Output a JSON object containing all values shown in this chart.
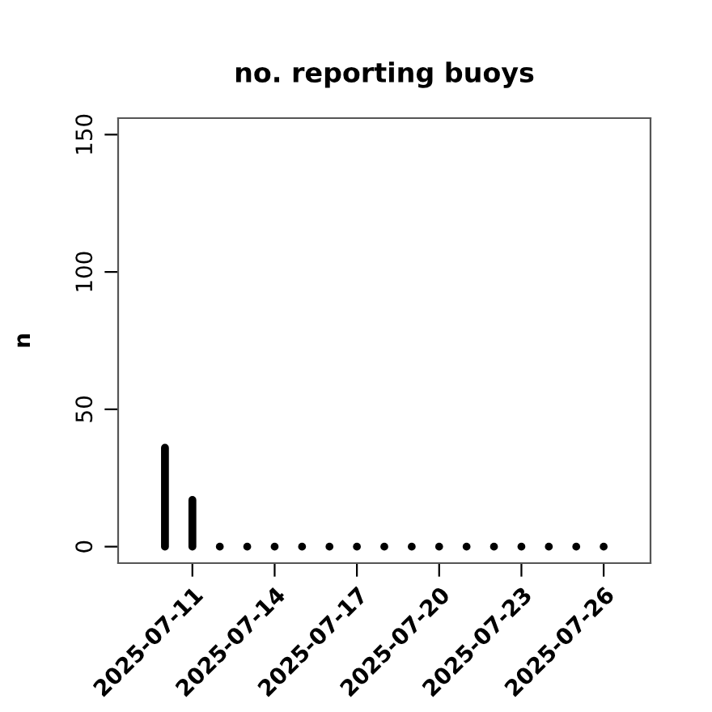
{
  "chart_data": {
    "type": "bar",
    "title": "no. reporting buoys",
    "ylabel": "n",
    "x": [
      "2025-07-10",
      "2025-07-11",
      "2025-07-12",
      "2025-07-13",
      "2025-07-14",
      "2025-07-15",
      "2025-07-16",
      "2025-07-17",
      "2025-07-18",
      "2025-07-19",
      "2025-07-20",
      "2025-07-21",
      "2025-07-22",
      "2025-07-23",
      "2025-07-24",
      "2025-07-25",
      "2025-07-26"
    ],
    "values": [
      36,
      17,
      0,
      0,
      0,
      0,
      0,
      0,
      0,
      0,
      0,
      0,
      0,
      0,
      0,
      0,
      0
    ],
    "color": "#000000",
    "xlim": [
      "2025-07-08T07:00",
      "2025-07-27T17:00"
    ],
    "xticks": [
      {
        "value": "2025-07-11",
        "label": "2025-07-11"
      },
      {
        "value": "2025-07-14",
        "label": "2025-07-14"
      },
      {
        "value": "2025-07-17",
        "label": "2025-07-17"
      },
      {
        "value": "2025-07-20",
        "label": "2025-07-20"
      },
      {
        "value": "2025-07-23",
        "label": "2025-07-23"
      },
      {
        "value": "2025-07-26",
        "label": "2025-07-26"
      }
    ],
    "ylim": [
      -6,
      156
    ],
    "yticks": [
      0,
      50,
      100,
      150
    ],
    "grid": false,
    "legend": false
  }
}
